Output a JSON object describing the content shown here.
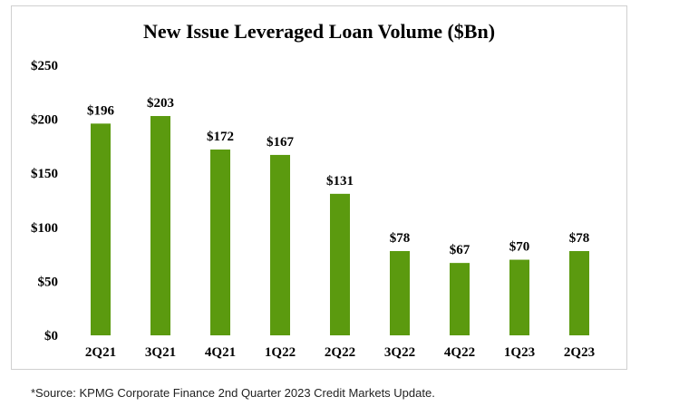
{
  "chart_data": {
    "type": "bar",
    "title": "New Issue Leveraged Loan Volume ($Bn)",
    "xlabel": "",
    "ylabel": "",
    "categories": [
      "2Q21",
      "3Q21",
      "4Q21",
      "1Q22",
      "2Q22",
      "3Q22",
      "4Q22",
      "1Q23",
      "2Q23"
    ],
    "values": [
      196,
      203,
      172,
      167,
      131,
      78,
      67,
      70,
      78
    ],
    "data_labels": [
      "$196",
      "$203",
      "$172",
      "$167",
      "$131",
      "$78",
      "$67",
      "$70",
      "$78"
    ],
    "ylim": [
      0,
      250
    ],
    "y_ticks": [
      0,
      50,
      100,
      150,
      200,
      250
    ],
    "y_tick_labels": [
      "$0",
      "$50",
      "$100",
      "$150",
      "$200",
      "$250"
    ],
    "grid": false,
    "legend": "none",
    "bar_color": "#5b9a0f"
  },
  "source_note": "*Source: KPMG Corporate Finance 2nd Quarter 2023 Credit Markets Update."
}
